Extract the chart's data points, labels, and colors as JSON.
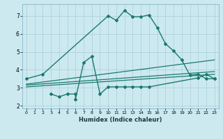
{
  "xlabel": "Humidex (Indice chaleur)",
  "background_color": "#cce9f0",
  "grid_color": "#aacdd8",
  "line_color": "#1a7a6a",
  "xlim": [
    -0.5,
    23.5
  ],
  "ylim": [
    1.85,
    7.65
  ],
  "yticks": [
    2,
    3,
    4,
    5,
    6,
    7
  ],
  "xticks": [
    0,
    1,
    2,
    3,
    4,
    5,
    6,
    7,
    8,
    9,
    10,
    11,
    12,
    13,
    14,
    15,
    16,
    17,
    18,
    19,
    20,
    21,
    22,
    23
  ],
  "line1_x": [
    0,
    2,
    10,
    11,
    12,
    13,
    14,
    15,
    16,
    17,
    18,
    19,
    20,
    21,
    22,
    23
  ],
  "line1_y": [
    3.5,
    3.75,
    7.0,
    6.75,
    7.3,
    6.95,
    6.95,
    7.05,
    6.35,
    5.45,
    5.05,
    4.55,
    3.7,
    3.75,
    3.5,
    3.5
  ],
  "line2_x": [
    3,
    4,
    5,
    6,
    6,
    7,
    8,
    9,
    10,
    11,
    12,
    13,
    14,
    15,
    21,
    22,
    23
  ],
  "line2_y": [
    2.65,
    2.5,
    2.65,
    2.65,
    2.35,
    4.4,
    4.75,
    2.65,
    3.05,
    3.05,
    3.05,
    3.05,
    3.05,
    3.05,
    3.55,
    3.75,
    3.5
  ],
  "line3_x": [
    0,
    23
  ],
  "line3_y": [
    3.05,
    3.75
  ],
  "line4_x": [
    0,
    23
  ],
  "line4_y": [
    3.15,
    3.9
  ],
  "line5_x": [
    0,
    23
  ],
  "line5_y": [
    3.2,
    4.55
  ]
}
